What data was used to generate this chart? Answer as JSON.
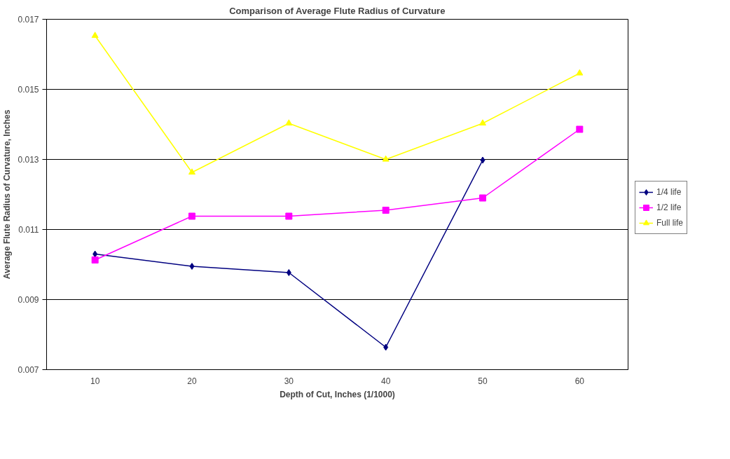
{
  "chart_data": {
    "type": "line",
    "title": "Comparison of Average Flute Radius of Curvature",
    "xlabel": "Depth of Cut, Inches (1/1000)",
    "ylabel": "Average Flute Radius of Curvature, Inches",
    "categories": [
      "10",
      "20",
      "30",
      "40",
      "50",
      "60"
    ],
    "series": [
      {
        "name": "1/4 life",
        "color": "#000080",
        "marker": "diamond",
        "values": [
          0.0103,
          0.00995,
          0.00977,
          0.00764,
          0.01298,
          null
        ]
      },
      {
        "name": "1/2 life",
        "color": "#ff00ff",
        "marker": "square",
        "values": [
          0.01013,
          0.01138,
          0.01138,
          0.01155,
          0.0119,
          0.01386
        ]
      },
      {
        "name": "Full life",
        "color": "#ffff00",
        "marker": "triangle",
        "values": [
          0.01653,
          0.01263,
          0.01403,
          0.013,
          0.01403,
          0.01546
        ]
      }
    ],
    "ylim": [
      0.007,
      0.017
    ],
    "yticks": [
      0.007,
      0.009,
      0.011,
      0.013,
      0.015,
      0.017
    ],
    "grid": "y",
    "legend": "right",
    "line_style": "solid"
  }
}
